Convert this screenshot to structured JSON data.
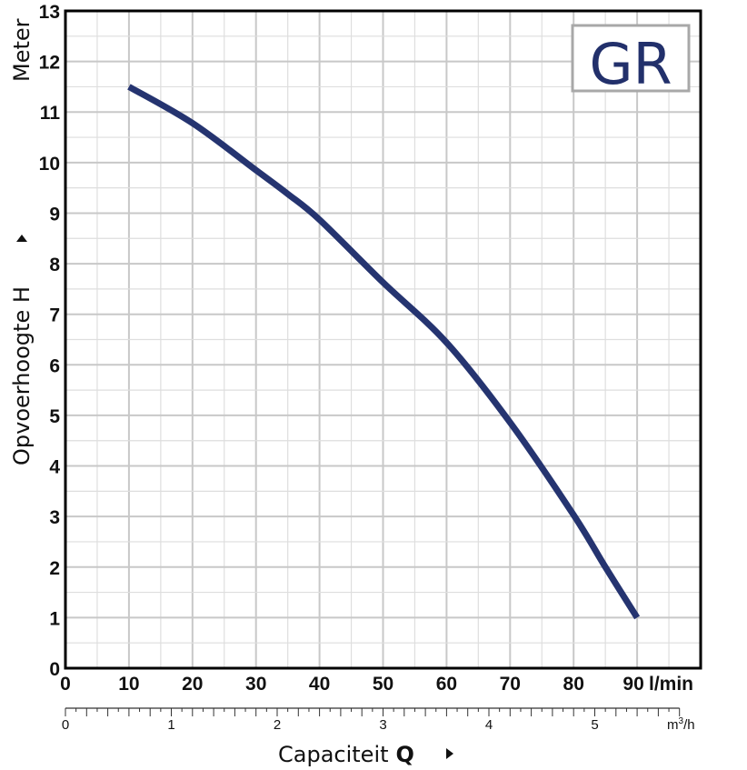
{
  "chart_data": {
    "type": "line",
    "title": "",
    "badge": "GR",
    "xlabel": "Capaciteit",
    "xlabel_symbol": "Q",
    "xunit": "l/min",
    "ylabel": "Opvoerhoogte H",
    "yunit": "Meter",
    "xlim": [
      0,
      100
    ],
    "ylim": [
      0,
      13
    ],
    "xticks": [
      0,
      10,
      20,
      30,
      40,
      50,
      60,
      70,
      80,
      90
    ],
    "yticks": [
      0,
      1,
      2,
      3,
      4,
      5,
      6,
      7,
      8,
      9,
      10,
      11,
      12,
      13
    ],
    "grid": true,
    "secondary_axis": {
      "unit": "m³/h",
      "unit_base": "m",
      "unit_sup": "3",
      "unit_tail": "/h",
      "ticks": [
        0,
        1,
        2,
        3,
        4,
        5
      ],
      "range": [
        0,
        5.8
      ]
    },
    "series": [
      {
        "name": "GR",
        "color": "#253470",
        "x": [
          10,
          20,
          30,
          35,
          40,
          50,
          60,
          70,
          80,
          85,
          90
        ],
        "y": [
          11.5,
          10.78,
          9.85,
          9.38,
          8.87,
          7.63,
          6.44,
          4.86,
          3.03,
          2.0,
          1.0
        ]
      }
    ]
  }
}
